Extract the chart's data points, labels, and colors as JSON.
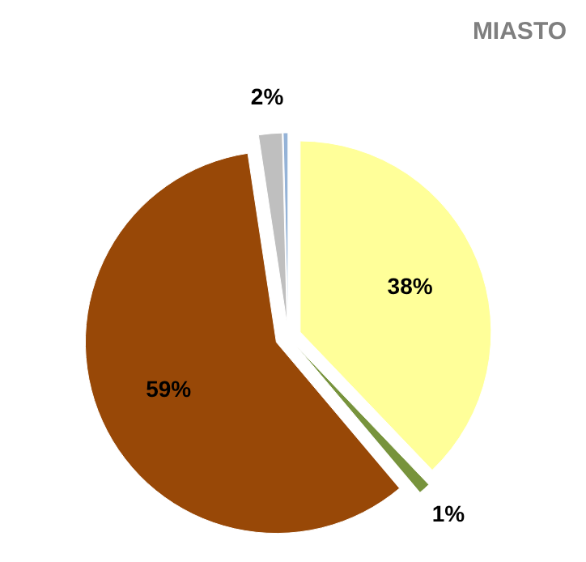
{
  "chart_data": {
    "type": "pie",
    "title": "MIASTO",
    "categories": [
      null,
      null,
      null,
      null,
      null
    ],
    "values": [
      38,
      1,
      59,
      2,
      0.4
    ],
    "colors": [
      "#ffff99",
      "#77933c",
      "#984807",
      "#bfbfbf",
      "#95b3d7"
    ],
    "value_labels": [
      "38%",
      "1%",
      "59%",
      "2%",
      null
    ]
  }
}
